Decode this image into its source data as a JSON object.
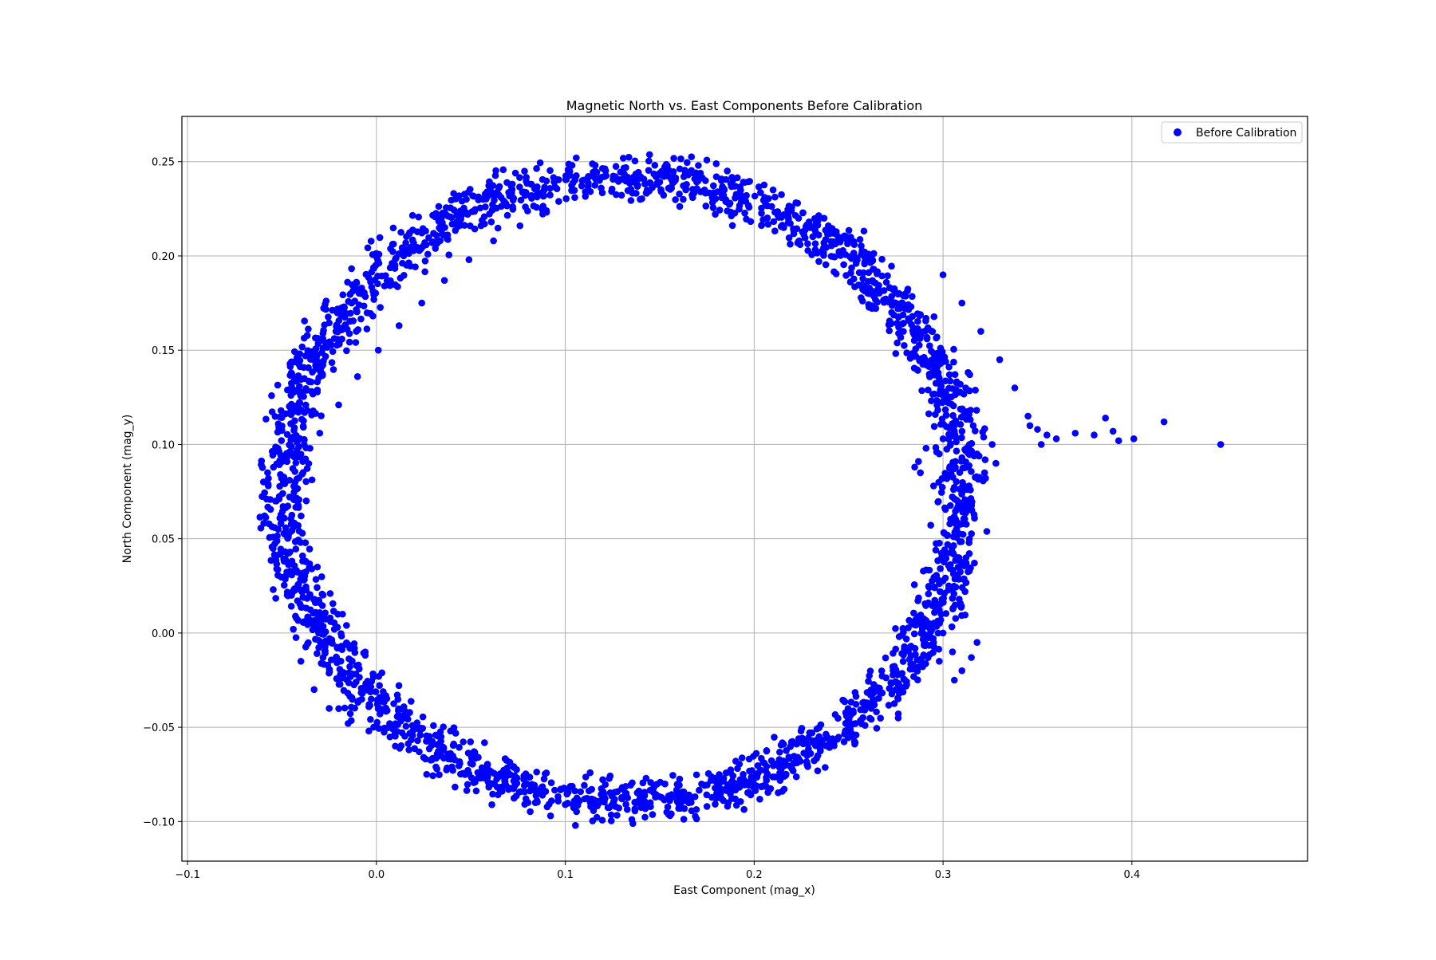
{
  "chart_data": {
    "type": "scatter",
    "title": "Magnetic North vs. East Components Before Calibration",
    "xlabel": "East Component (mag_x)",
    "ylabel": "North Component (mag_y)",
    "xlim": [
      -0.103,
      0.493
    ],
    "ylim": [
      -0.121,
      0.274
    ],
    "xticks": [
      -0.1,
      0.0,
      0.1,
      0.2,
      0.3,
      0.4
    ],
    "xtick_labels": [
      "−0.1",
      "0.0",
      "0.1",
      "0.2",
      "0.3",
      "0.4"
    ],
    "yticks": [
      -0.1,
      -0.05,
      0.0,
      0.05,
      0.1,
      0.15,
      0.2,
      0.25
    ],
    "ytick_labels": [
      "−0.10",
      "−0.05",
      "0.00",
      "0.05",
      "0.10",
      "0.15",
      "0.20",
      "0.25"
    ],
    "grid": true,
    "legend_position": "top-right",
    "series": [
      {
        "name": "Before Calibration",
        "color": "#0000ff",
        "marker": "circle",
        "ellipse_center": [
          0.131,
          0.076
        ],
        "ellipse_radii": [
          0.18,
          0.165
        ],
        "points": [
          [
            0.311,
            0.076
          ],
          [
            0.31,
            0.093
          ],
          [
            0.306,
            0.11
          ],
          [
            0.3,
            0.126
          ],
          [
            0.295,
            0.142
          ],
          [
            0.288,
            0.158
          ],
          [
            0.28,
            0.172
          ],
          [
            0.27,
            0.186
          ],
          [
            0.26,
            0.199
          ],
          [
            0.249,
            0.21
          ],
          [
            0.237,
            0.22
          ],
          [
            0.223,
            0.228
          ],
          [
            0.21,
            0.235
          ],
          [
            0.195,
            0.239
          ],
          [
            0.18,
            0.242
          ],
          [
            0.165,
            0.243
          ],
          [
            0.15,
            0.243
          ],
          [
            0.135,
            0.24
          ],
          [
            0.119,
            0.236
          ],
          [
            0.105,
            0.231
          ],
          [
            0.09,
            0.224
          ],
          [
            0.076,
            0.216
          ],
          [
            0.062,
            0.208
          ],
          [
            0.049,
            0.198
          ],
          [
            0.036,
            0.187
          ],
          [
            0.024,
            0.175
          ],
          [
            0.012,
            0.163
          ],
          [
            0.001,
            0.15
          ],
          [
            -0.01,
            0.136
          ],
          [
            -0.02,
            0.121
          ],
          [
            -0.03,
            0.106
          ],
          [
            -0.039,
            0.091
          ],
          [
            -0.046,
            0.081
          ],
          [
            -0.053,
            0.07
          ],
          [
            -0.052,
            0.055
          ],
          [
            -0.048,
            0.038
          ],
          [
            -0.045,
            0.02
          ],
          [
            -0.044,
            0.002
          ],
          [
            -0.04,
            -0.015
          ],
          [
            -0.033,
            -0.03
          ],
          [
            -0.025,
            -0.04
          ],
          [
            -0.015,
            -0.048
          ],
          [
            -0.004,
            -0.052
          ],
          [
            0.01,
            -0.06
          ],
          [
            0.025,
            -0.066
          ],
          [
            0.04,
            -0.071
          ],
          [
            0.055,
            -0.077
          ],
          [
            0.07,
            -0.083
          ],
          [
            0.085,
            -0.089
          ],
          [
            0.1,
            -0.091
          ],
          [
            0.115,
            -0.09
          ],
          [
            0.13,
            -0.088
          ],
          [
            0.145,
            -0.09
          ],
          [
            0.16,
            -0.093
          ],
          [
            0.175,
            -0.092
          ],
          [
            0.19,
            -0.088
          ],
          [
            0.205,
            -0.081
          ],
          [
            0.22,
            -0.072
          ],
          [
            0.235,
            -0.062
          ],
          [
            0.25,
            -0.05
          ],
          [
            0.262,
            -0.04
          ],
          [
            0.275,
            -0.03
          ],
          [
            0.287,
            -0.018
          ],
          [
            0.295,
            -0.005
          ],
          [
            0.299,
            0.01
          ],
          [
            0.303,
            0.025
          ],
          [
            0.308,
            0.04
          ],
          [
            0.311,
            0.058
          ],
          [
            0.3,
            0.19
          ],
          [
            0.31,
            0.175
          ],
          [
            0.32,
            0.16
          ],
          [
            0.33,
            0.145
          ],
          [
            0.338,
            0.13
          ],
          [
            0.345,
            0.115
          ],
          [
            0.35,
            0.108
          ],
          [
            0.355,
            0.105
          ],
          [
            0.36,
            0.103
          ],
          [
            0.37,
            0.106
          ],
          [
            0.38,
            0.105
          ],
          [
            0.386,
            0.114
          ],
          [
            0.39,
            0.107
          ],
          [
            0.393,
            0.102
          ],
          [
            0.401,
            0.103
          ],
          [
            0.417,
            0.112
          ],
          [
            0.447,
            0.1
          ],
          [
            0.346,
            0.11
          ],
          [
            0.352,
            0.1
          ],
          [
            0.312,
            0.13
          ],
          [
            0.316,
            0.11
          ],
          [
            0.318,
            0.095
          ],
          [
            0.322,
            0.085
          ],
          [
            0.326,
            0.1
          ],
          [
            0.328,
            0.09
          ],
          [
            0.314,
            0.07
          ],
          [
            0.285,
            0.088
          ],
          [
            0.288,
            0.085
          ],
          [
            0.291,
            0.098
          ],
          [
            0.295,
            0.078
          ],
          [
            0.298,
            0.095
          ],
          [
            0.3,
            0.103
          ],
          [
            0.287,
            0.091
          ],
          [
            0.3,
            0.0
          ],
          [
            0.305,
            -0.01
          ],
          [
            0.31,
            -0.02
          ],
          [
            0.315,
            -0.013
          ],
          [
            0.318,
            -0.005
          ],
          [
            0.306,
            -0.025
          ],
          [
            0.298,
            -0.015
          ],
          [
            -0.03,
            0.001
          ]
        ]
      }
    ]
  }
}
